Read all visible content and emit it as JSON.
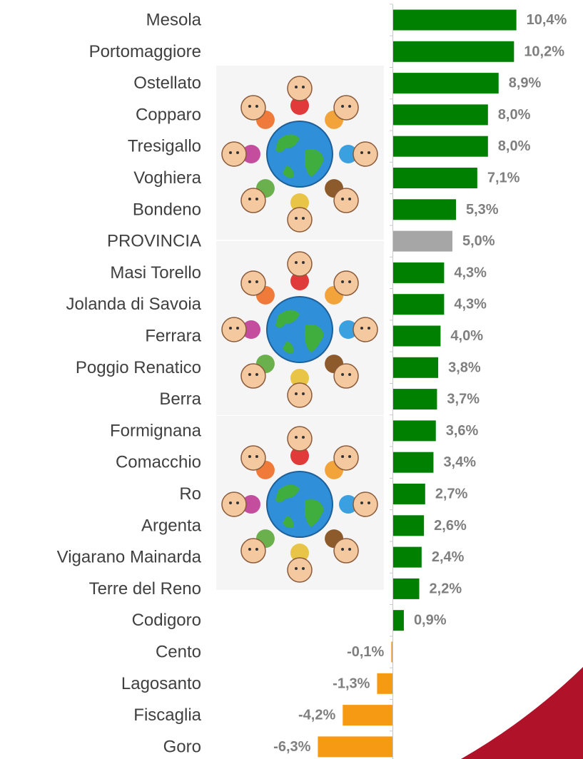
{
  "colors": {
    "positive": "#008000",
    "negative": "#f59a12",
    "highlight": "#a6a6a6",
    "axis": "#c8c8c8",
    "label": "#404040",
    "value_label": "#7f7f7f",
    "corner_accent": "#b0122a",
    "image_panel": "#f5f5f5"
  },
  "decoration": {
    "image_panels": [
      "children-around-globe-illustration",
      "children-around-globe-illustration",
      "children-around-globe-illustration"
    ]
  },
  "chart_data": {
    "type": "bar",
    "orientation": "horizontal",
    "categories": [
      "Mesola",
      "Portomaggiore",
      "Ostellato",
      "Copparo",
      "Tresigallo",
      "Voghiera",
      "Bondeno",
      "PROVINCIA",
      "Masi Torello",
      "Jolanda di Savoia",
      "Ferrara",
      "Poggio Renatico",
      "Berra",
      "Formignana",
      "Comacchio",
      "Ro",
      "Argenta",
      "Vigarano Mainarda",
      "Terre del Reno",
      "Codigoro",
      "Cento",
      "Lagosanto",
      "Fiscaglia",
      "Goro"
    ],
    "values": [
      10.4,
      10.2,
      8.9,
      8.0,
      8.0,
      7.1,
      5.3,
      5.0,
      4.3,
      4.3,
      4.0,
      3.8,
      3.7,
      3.6,
      3.4,
      2.7,
      2.6,
      2.4,
      2.2,
      0.9,
      -0.1,
      -1.3,
      -4.2,
      -6.3
    ],
    "value_labels": [
      "10,4%",
      "10,2%",
      "8,9%",
      "8,0%",
      "8,0%",
      "7,1%",
      "5,3%",
      "5,0%",
      "4,3%",
      "4,3%",
      "4,0%",
      "3,8%",
      "3,7%",
      "3,6%",
      "3,4%",
      "2,7%",
      "2,6%",
      "2,4%",
      "2,2%",
      "0,9%",
      "-0,1%",
      "-1,3%",
      "-4,2%",
      "-6,3%"
    ],
    "highlight_category": "PROVINCIA",
    "unit": "%",
    "xlim": [
      -6.3,
      10.4
    ],
    "grid": false,
    "legend": "none"
  }
}
